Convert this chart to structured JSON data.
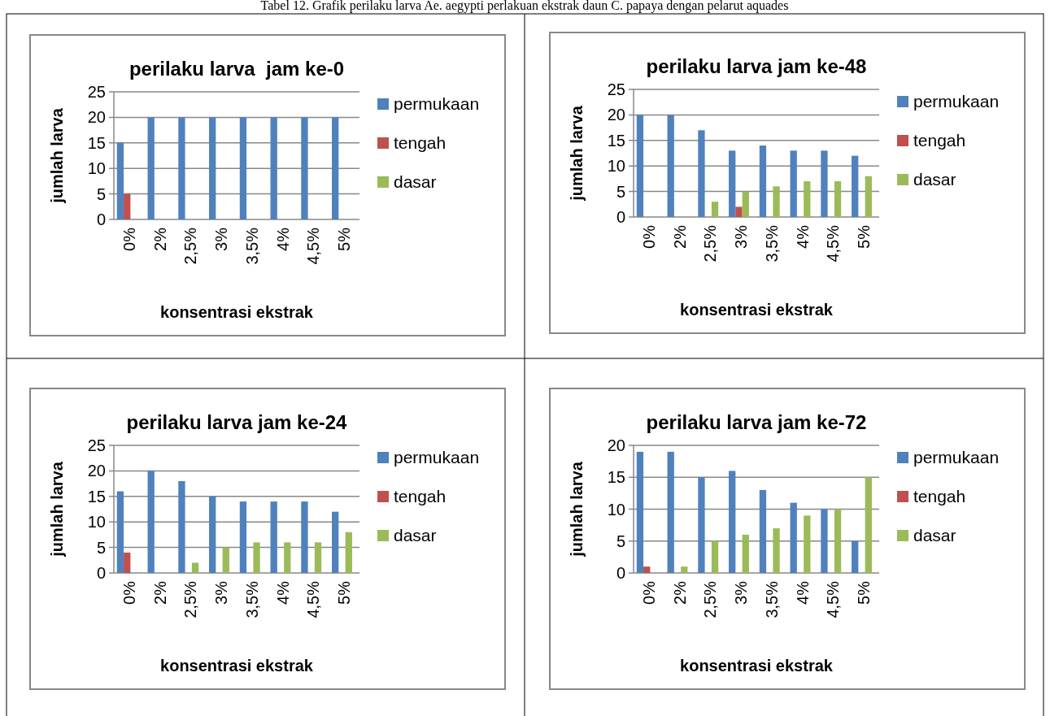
{
  "chart_data": [
    {
      "type": "bar",
      "title": "perilaku larva  jam ke-0",
      "xlabel": "konsentrasi ekstrak",
      "ylabel": "jumlah larva",
      "annotations": [
        "Tabel 12. Grafik perilaku larva Ae. aegypti perlakuan ekstrak daun C. papaya dengan pelarut aquades"
      ],
      "categories": [
        "0%",
        "2%",
        "2,5%",
        "3%",
        "3,5%",
        "4%",
        "4,5%",
        "5%"
      ],
      "ylim": [
        0,
        25
      ],
      "yticks": [
        0,
        5,
        10,
        15,
        20,
        25
      ],
      "grid": "y",
      "legend": "right",
      "series": [
        {
          "name": "permukaan",
          "color": "#4f81bd",
          "values": [
            15,
            20,
            20,
            20,
            20,
            20,
            20,
            20
          ]
        },
        {
          "name": "tengah",
          "color": "#c0504d",
          "values": [
            5,
            0,
            0,
            0,
            0,
            0,
            0,
            0
          ]
        },
        {
          "name": "dasar",
          "color": "#9bbb59",
          "values": [
            0,
            0,
            0,
            0,
            0,
            0,
            0,
            0
          ]
        }
      ]
    },
    {
      "type": "bar",
      "title": "perilaku larva jam ke-48",
      "xlabel": "konsentrasi ekstrak",
      "ylabel": "jumlah larva",
      "categories": [
        "0%",
        "2%",
        "2,5%",
        "3%",
        "3,5%",
        "4%",
        "4,5%",
        "5%"
      ],
      "ylim": [
        0,
        25
      ],
      "yticks": [
        0,
        5,
        10,
        15,
        20,
        25
      ],
      "grid": "y",
      "legend": "right",
      "series": [
        {
          "name": "permukaan",
          "color": "#4f81bd",
          "values": [
            20,
            20,
            17,
            13,
            14,
            13,
            13,
            12
          ]
        },
        {
          "name": "tengah",
          "color": "#c0504d",
          "values": [
            0,
            0,
            0,
            2,
            0,
            0,
            0,
            0
          ]
        },
        {
          "name": "dasar",
          "color": "#9bbb59",
          "values": [
            0,
            0,
            3,
            5,
            6,
            7,
            7,
            8
          ]
        }
      ]
    },
    {
      "type": "bar",
      "title": "perilaku larva jam ke-24",
      "xlabel": "konsentrasi ekstrak",
      "ylabel": "jumlah larva",
      "categories": [
        "0%",
        "2%",
        "2,5%",
        "3%",
        "3,5%",
        "4%",
        "4,5%",
        "5%"
      ],
      "ylim": [
        0,
        25
      ],
      "yticks": [
        0,
        5,
        10,
        15,
        20,
        25
      ],
      "grid": "y",
      "legend": "right",
      "series": [
        {
          "name": "permukaan",
          "color": "#4f81bd",
          "values": [
            16,
            20,
            18,
            15,
            14,
            14,
            14,
            12
          ]
        },
        {
          "name": "tengah",
          "color": "#c0504d",
          "values": [
            4,
            0,
            0,
            0,
            0,
            0,
            0,
            0
          ]
        },
        {
          "name": "dasar",
          "color": "#9bbb59",
          "values": [
            0,
            0,
            2,
            5,
            6,
            6,
            6,
            8
          ]
        }
      ]
    },
    {
      "type": "bar",
      "title": "perilaku larva jam ke-72",
      "xlabel": "konsentrasi ekstrak",
      "ylabel": "jumlah larva",
      "categories": [
        "0%",
        "2%",
        "2,5%",
        "3%",
        "3,5%",
        "4%",
        "4,5%",
        "5%"
      ],
      "ylim": [
        0,
        20
      ],
      "yticks": [
        0,
        5,
        10,
        15,
        20
      ],
      "grid": "y",
      "legend": "right",
      "series": [
        {
          "name": "permukaan",
          "color": "#4f81bd",
          "values": [
            19,
            19,
            15,
            16,
            13,
            11,
            10,
            5
          ]
        },
        {
          "name": "tengah",
          "color": "#c0504d",
          "values": [
            1,
            0,
            0,
            0,
            0,
            0,
            0,
            0
          ]
        },
        {
          "name": "dasar",
          "color": "#9bbb59",
          "values": [
            0,
            1,
            5,
            6,
            7,
            9,
            10,
            15
          ]
        }
      ]
    }
  ]
}
